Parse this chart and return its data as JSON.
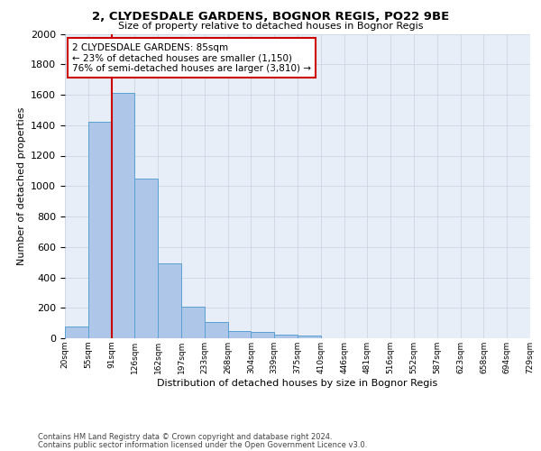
{
  "title1": "2, CLYDESDALE GARDENS, BOGNOR REGIS, PO22 9BE",
  "title2": "Size of property relative to detached houses in Bognor Regis",
  "xlabel": "Distribution of detached houses by size in Bognor Regis",
  "ylabel": "Number of detached properties",
  "bar_values": [
    80,
    1420,
    1610,
    1050,
    490,
    205,
    105,
    50,
    40,
    25,
    20,
    0,
    0,
    0,
    0,
    0,
    0,
    0,
    0,
    0
  ],
  "bin_labels": [
    "20sqm",
    "55sqm",
    "91sqm",
    "126sqm",
    "162sqm",
    "197sqm",
    "233sqm",
    "268sqm",
    "304sqm",
    "339sqm",
    "375sqm",
    "410sqm",
    "446sqm",
    "481sqm",
    "516sqm",
    "552sqm",
    "587sqm",
    "623sqm",
    "658sqm",
    "694sqm",
    "729sqm"
  ],
  "bar_color": "#aec6e8",
  "bar_edge_color": "#5a9fd4",
  "vline_color": "#cc0000",
  "annotation_text": "2 CLYDESDALE GARDENS: 85sqm\n← 23% of detached houses are smaller (1,150)\n76% of semi-detached houses are larger (3,810) →",
  "annotation_box_color": "#ffffff",
  "annotation_box_edge": "#cc0000",
  "ylim": [
    0,
    2000
  ],
  "yticks": [
    0,
    200,
    400,
    600,
    800,
    1000,
    1200,
    1400,
    1600,
    1800,
    2000
  ],
  "footer1": "Contains HM Land Registry data © Crown copyright and database right 2024.",
  "footer2": "Contains public sector information licensed under the Open Government Licence v3.0.",
  "bg_color": "#ffffff",
  "ax_bg_color": "#e8eef8",
  "grid_color": "#c8d0e0"
}
